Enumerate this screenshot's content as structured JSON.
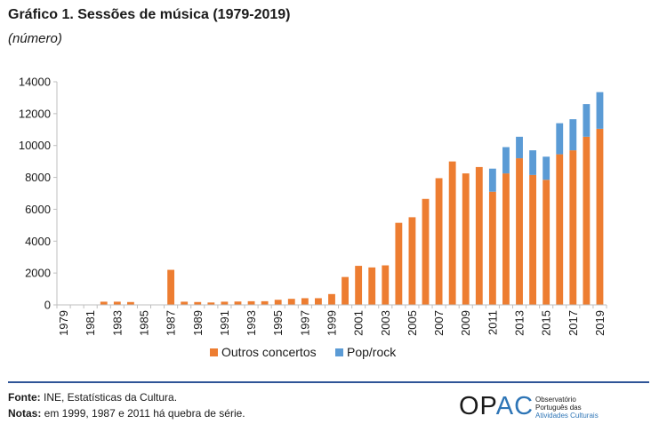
{
  "title": "Gráfico 1. Sessões de música (1979-2019)",
  "subtitle": "(número)",
  "footer": {
    "source_label": "Fonte:",
    "source_text": " INE, Estatísticas da Cultura.",
    "notes_label": "Notas:",
    "notes_text": " em 1999, 1987 e 2011 há quebra de série."
  },
  "logo": {
    "letters_o": "OP",
    "letters_ac": "AC",
    "line1": "Observatório",
    "line2": "Português das",
    "line3": "Atividades Culturais"
  },
  "colors": {
    "outros": "#ed7d31",
    "pop": "#5b9bd5",
    "axis": "#bfbfbf",
    "brand_blue": "#2e75b6"
  },
  "chart_data": {
    "type": "bar",
    "stacked": true,
    "title": "Gráfico 1. Sessões de música (1979-2019)",
    "ylabel": "(número)",
    "xlabel": "",
    "ylim": [
      0,
      14000
    ],
    "yticks": [
      0,
      2000,
      4000,
      6000,
      8000,
      10000,
      12000,
      14000
    ],
    "legend": "bottom",
    "categories": [
      "1979",
      "1980",
      "1981",
      "1982",
      "1983",
      "1984",
      "1985",
      "1986",
      "1987",
      "1988",
      "1989",
      "1990",
      "1991",
      "1992",
      "1993",
      "1994",
      "1995",
      "1996",
      "1997",
      "1998",
      "1999",
      "2000",
      "2001",
      "2002",
      "2003",
      "2004",
      "2005",
      "2006",
      "2007",
      "2008",
      "2009",
      "2010",
      "2011",
      "2012",
      "2013",
      "2014",
      "2015",
      "2016",
      "2017",
      "2018",
      "2019"
    ],
    "xtick_labels": [
      "1979",
      "1981",
      "1983",
      "1985",
      "1987",
      "1989",
      "1991",
      "1993",
      "1995",
      "1997",
      "1999",
      "2001",
      "2003",
      "2005",
      "2007",
      "2009",
      "2011",
      "2013",
      "2015",
      "2017",
      "2019"
    ],
    "series": [
      {
        "name": "Outros concertos",
        "values": [
          0,
          0,
          0,
          200,
          200,
          180,
          0,
          0,
          2200,
          200,
          180,
          150,
          200,
          210,
          230,
          230,
          320,
          380,
          420,
          420,
          680,
          1750,
          2450,
          2350,
          2480,
          5150,
          5500,
          6650,
          7950,
          9000,
          8250,
          8650,
          7100,
          8250,
          9200,
          8150,
          7850,
          9450,
          9700,
          10550,
          11050
        ]
      },
      {
        "name": "Pop/rock",
        "values": [
          0,
          0,
          0,
          0,
          0,
          0,
          0,
          0,
          0,
          0,
          0,
          0,
          0,
          0,
          0,
          0,
          0,
          0,
          0,
          0,
          0,
          0,
          0,
          0,
          0,
          0,
          0,
          0,
          0,
          0,
          0,
          0,
          1450,
          1650,
          1350,
          1550,
          1450,
          1950,
          1950,
          2050,
          2300
        ]
      }
    ]
  }
}
